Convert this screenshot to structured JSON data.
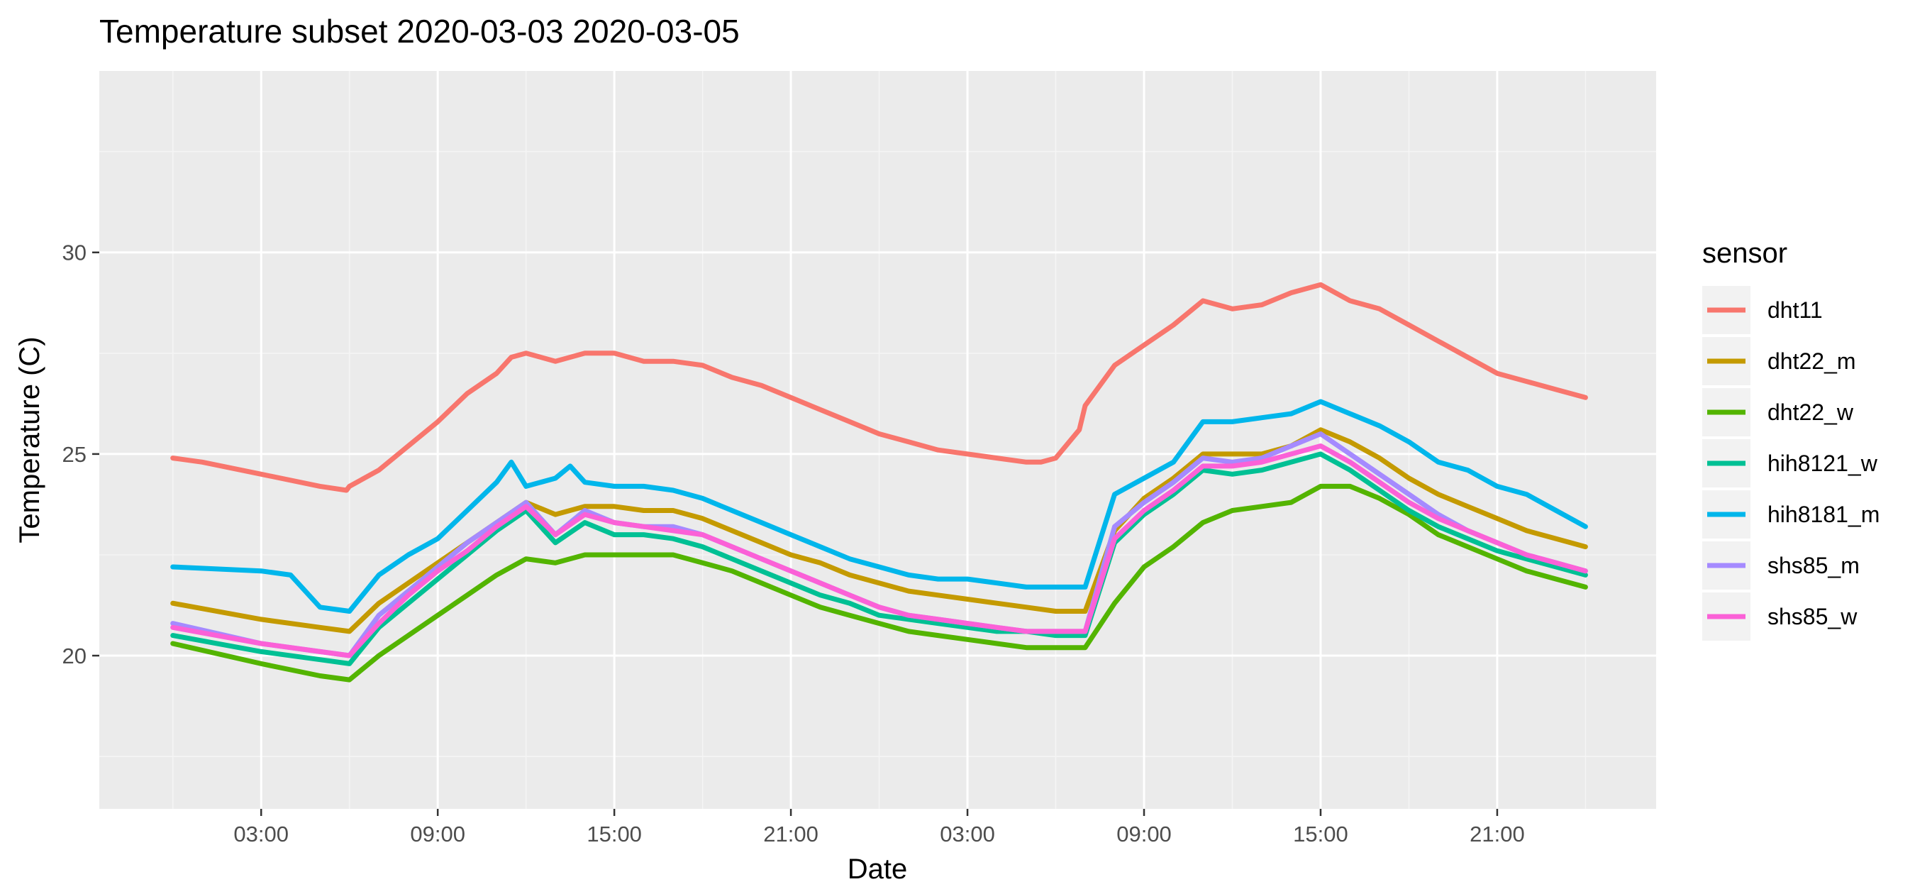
{
  "chart_data": {
    "type": "line",
    "title": "Temperature subset 2020-03-03 2020-03-05",
    "xlabel": "Date",
    "ylabel": "Temperature (C)",
    "x_tick_labels": [
      "03:00",
      "09:00",
      "15:00",
      "21:00",
      "03:00",
      "09:00",
      "15:00",
      "21:00"
    ],
    "x_ticks_hours": [
      3,
      9,
      15,
      21,
      27,
      33,
      39,
      45
    ],
    "x_unit": "hours from 2020-03-03 00:00",
    "xlim": [
      -2.5,
      50.4
    ],
    "y_ticks": [
      20,
      25,
      30
    ],
    "ylim": [
      16.2,
      34.5
    ],
    "grid": true,
    "legend": {
      "title": "sensor",
      "position": "right"
    },
    "series": [
      {
        "name": "dht11",
        "color": "#F8766D",
        "x": [
          0,
          1,
          3,
          5,
          5.9,
          6,
          7,
          8,
          9,
          10,
          11,
          11.5,
          12,
          13,
          14,
          15,
          16,
          17,
          18,
          19,
          20,
          21,
          22,
          23,
          24,
          25,
          26,
          27,
          28,
          29,
          29.5,
          30,
          30.8,
          31,
          32,
          33,
          34,
          35,
          36,
          37,
          38,
          39,
          40,
          41,
          42,
          43,
          44,
          45,
          46,
          47,
          48
        ],
        "values": [
          24.9,
          24.8,
          24.5,
          24.2,
          24.1,
          24.2,
          24.6,
          25.2,
          25.8,
          26.5,
          27.0,
          27.4,
          27.5,
          27.3,
          27.5,
          27.5,
          27.3,
          27.3,
          27.2,
          26.9,
          26.7,
          26.4,
          26.1,
          25.8,
          25.5,
          25.3,
          25.1,
          25.0,
          24.9,
          24.8,
          24.8,
          24.9,
          25.6,
          26.2,
          27.2,
          27.7,
          28.2,
          28.8,
          28.6,
          28.7,
          29.0,
          29.2,
          28.8,
          28.6,
          28.2,
          27.8,
          27.4,
          27.0,
          26.8,
          26.6,
          26.4
        ]
      },
      {
        "name": "dht22_m",
        "color": "#C49A00",
        "x": [
          0,
          3,
          5,
          6,
          7,
          8,
          9,
          10,
          11,
          12,
          13,
          14,
          15,
          16,
          17,
          18,
          19,
          20,
          21,
          22,
          23,
          24,
          25,
          26,
          27,
          28,
          29,
          30,
          31,
          32,
          33,
          34,
          35,
          36,
          37,
          38,
          39,
          40,
          41,
          42,
          43,
          44,
          45,
          46,
          47,
          48
        ],
        "values": [
          21.3,
          20.9,
          20.7,
          20.6,
          21.3,
          21.8,
          22.3,
          22.8,
          23.3,
          23.8,
          23.5,
          23.7,
          23.7,
          23.6,
          23.6,
          23.4,
          23.1,
          22.8,
          22.5,
          22.3,
          22.0,
          21.8,
          21.6,
          21.5,
          21.4,
          21.3,
          21.2,
          21.1,
          21.1,
          23.1,
          23.9,
          24.4,
          25.0,
          25.0,
          25.0,
          25.2,
          25.6,
          25.3,
          24.9,
          24.4,
          24.0,
          23.7,
          23.4,
          23.1,
          22.9,
          22.7
        ]
      },
      {
        "name": "dht22_w",
        "color": "#53B400",
        "x": [
          0,
          3,
          5,
          6,
          7,
          8,
          9,
          10,
          11,
          12,
          13,
          14,
          15,
          16,
          17,
          18,
          19,
          20,
          21,
          22,
          23,
          24,
          25,
          26,
          27,
          28,
          29,
          30,
          31,
          32,
          33,
          34,
          35,
          36,
          37,
          38,
          39,
          40,
          41,
          42,
          43,
          44,
          45,
          46,
          47,
          48
        ],
        "values": [
          20.3,
          19.8,
          19.5,
          19.4,
          20.0,
          20.5,
          21.0,
          21.5,
          22.0,
          22.4,
          22.3,
          22.5,
          22.5,
          22.5,
          22.5,
          22.3,
          22.1,
          21.8,
          21.5,
          21.2,
          21.0,
          20.8,
          20.6,
          20.5,
          20.4,
          20.3,
          20.2,
          20.2,
          20.2,
          21.3,
          22.2,
          22.7,
          23.3,
          23.6,
          23.7,
          23.8,
          24.2,
          24.2,
          23.9,
          23.5,
          23.0,
          22.7,
          22.4,
          22.1,
          21.9,
          21.7
        ]
      },
      {
        "name": "hih8121_w",
        "color": "#00C094",
        "x": [
          0,
          3,
          5,
          6,
          7,
          8,
          9,
          10,
          11,
          12,
          13,
          14,
          15,
          16,
          17,
          18,
          19,
          20,
          21,
          22,
          23,
          24,
          25,
          26,
          27,
          28,
          29,
          30,
          31,
          32,
          33,
          34,
          35,
          36,
          37,
          38,
          39,
          40,
          41,
          42,
          43,
          44,
          45,
          46,
          47,
          48
        ],
        "values": [
          20.5,
          20.1,
          19.9,
          19.8,
          20.7,
          21.3,
          21.9,
          22.5,
          23.1,
          23.6,
          22.8,
          23.3,
          23.0,
          23.0,
          22.9,
          22.7,
          22.4,
          22.1,
          21.8,
          21.5,
          21.3,
          21.0,
          20.9,
          20.8,
          20.7,
          20.6,
          20.6,
          20.5,
          20.5,
          22.8,
          23.5,
          24.0,
          24.6,
          24.5,
          24.6,
          24.8,
          25.0,
          24.6,
          24.1,
          23.6,
          23.2,
          22.9,
          22.6,
          22.4,
          22.2,
          22.0
        ]
      },
      {
        "name": "hih8181_m",
        "color": "#00B6EB",
        "x": [
          0,
          3,
          4,
          5,
          6,
          7,
          8,
          9,
          10,
          11,
          11.5,
          12,
          13,
          13.5,
          14,
          15,
          16,
          17,
          18,
          19,
          20,
          21,
          22,
          23,
          24,
          25,
          26,
          27,
          28,
          29,
          30,
          31,
          32,
          33,
          34,
          35,
          36,
          37,
          38,
          39,
          40,
          41,
          42,
          43,
          44,
          45,
          46,
          47,
          48
        ],
        "values": [
          22.2,
          22.1,
          22.0,
          21.2,
          21.1,
          22.0,
          22.5,
          22.9,
          23.6,
          24.3,
          24.8,
          24.2,
          24.4,
          24.7,
          24.3,
          24.2,
          24.2,
          24.1,
          23.9,
          23.6,
          23.3,
          23.0,
          22.7,
          22.4,
          22.2,
          22.0,
          21.9,
          21.9,
          21.8,
          21.7,
          21.7,
          21.7,
          24.0,
          24.4,
          24.8,
          25.8,
          25.8,
          25.9,
          26.0,
          26.3,
          26.0,
          25.7,
          25.3,
          24.8,
          24.6,
          24.2,
          24.0,
          23.6,
          23.2
        ]
      },
      {
        "name": "shs85_m",
        "color": "#A58AFF",
        "x": [
          0,
          3,
          5,
          6,
          7,
          8,
          9,
          10,
          11,
          12,
          13,
          14,
          15,
          16,
          17,
          18,
          19,
          20,
          21,
          22,
          23,
          24,
          25,
          26,
          27,
          28,
          29,
          30,
          31,
          32,
          33,
          34,
          35,
          36,
          37,
          38,
          39,
          40,
          41,
          42,
          43,
          44,
          45,
          46,
          47,
          48
        ],
        "values": [
          20.8,
          20.3,
          20.1,
          20.0,
          21.0,
          21.6,
          22.2,
          22.8,
          23.3,
          23.8,
          23.0,
          23.6,
          23.3,
          23.2,
          23.2,
          23.0,
          22.7,
          22.4,
          22.1,
          21.8,
          21.5,
          21.2,
          21.0,
          20.9,
          20.8,
          20.7,
          20.6,
          20.6,
          20.6,
          23.2,
          23.8,
          24.3,
          24.9,
          24.8,
          24.9,
          25.2,
          25.5,
          25.0,
          24.5,
          24.0,
          23.5,
          23.1,
          22.8,
          22.5,
          22.3,
          22.1
        ]
      },
      {
        "name": "shs85_w",
        "color": "#FB61D7",
        "x": [
          0,
          3,
          5,
          6,
          7,
          8,
          9,
          10,
          11,
          12,
          13,
          14,
          15,
          16,
          17,
          18,
          19,
          20,
          21,
          22,
          23,
          24,
          25,
          26,
          27,
          28,
          29,
          30,
          31,
          32,
          33,
          34,
          35,
          36,
          37,
          38,
          39,
          40,
          41,
          42,
          43,
          44,
          45,
          46,
          47,
          48
        ],
        "values": [
          20.7,
          20.3,
          20.1,
          20.0,
          20.8,
          21.5,
          22.1,
          22.6,
          23.2,
          23.7,
          23.0,
          23.5,
          23.3,
          23.2,
          23.1,
          23.0,
          22.7,
          22.4,
          22.1,
          21.8,
          21.5,
          21.2,
          21.0,
          20.9,
          20.8,
          20.7,
          20.6,
          20.6,
          20.6,
          22.9,
          23.6,
          24.1,
          24.7,
          24.7,
          24.8,
          25.0,
          25.2,
          24.8,
          24.3,
          23.8,
          23.4,
          23.1,
          22.8,
          22.5,
          22.3,
          22.1
        ]
      }
    ]
  }
}
